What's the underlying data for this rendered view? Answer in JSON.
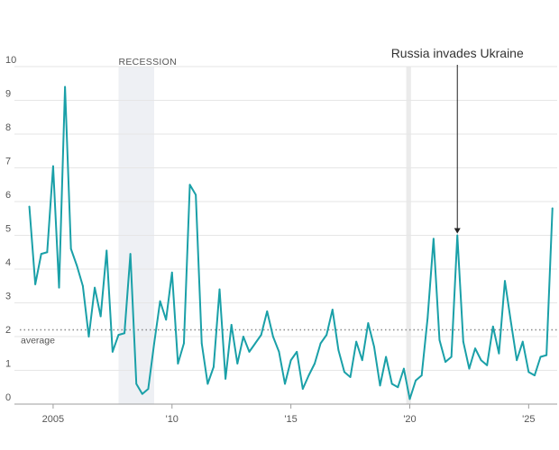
{
  "chart_data": {
    "type": "line",
    "x_ticks": [
      {
        "label": "2005",
        "value": 2005
      },
      {
        "label": "'10",
        "value": 2010
      },
      {
        "label": "'15",
        "value": 2015
      },
      {
        "label": "'20",
        "value": 2020
      },
      {
        "label": "'25",
        "value": 2025
      }
    ],
    "y_ticks": [
      0,
      1,
      2,
      3,
      4,
      5,
      6,
      7,
      8,
      9,
      10
    ],
    "xlim": [
      2003.6,
      2026.2
    ],
    "ylim": [
      0,
      10
    ],
    "grid": true,
    "average": {
      "value": 2.2,
      "label": "average"
    },
    "shaded_periods": [
      {
        "label": "RECESSION",
        "start": 2007.75,
        "end": 2009.25
      },
      {
        "label": "",
        "start": 2019.85,
        "end": 2020.05
      }
    ],
    "annotation": {
      "text": "Russia invades Ukraine",
      "x": 2022.0,
      "y": 5.0
    },
    "series": [
      {
        "color": "#1aa0a8",
        "x": [
          2004.0,
          2004.25,
          2004.5,
          2004.75,
          2005.0,
          2005.25,
          2005.5,
          2005.75,
          2006.0,
          2006.25,
          2006.5,
          2006.75,
          2007.0,
          2007.25,
          2007.5,
          2007.75,
          2008.0,
          2008.25,
          2008.5,
          2008.75,
          2009.0,
          2009.25,
          2009.5,
          2009.75,
          2010.0,
          2010.25,
          2010.5,
          2010.75,
          2011.0,
          2011.25,
          2011.5,
          2011.75,
          2012.0,
          2012.25,
          2012.5,
          2012.75,
          2013.0,
          2013.25,
          2013.5,
          2013.75,
          2014.0,
          2014.25,
          2014.5,
          2014.75,
          2015.0,
          2015.25,
          2015.5,
          2015.75,
          2016.0,
          2016.25,
          2016.5,
          2016.75,
          2017.0,
          2017.25,
          2017.5,
          2017.75,
          2018.0,
          2018.25,
          2018.5,
          2018.75,
          2019.0,
          2019.25,
          2019.5,
          2019.75,
          2020.0,
          2020.25,
          2020.5,
          2020.75,
          2021.0,
          2021.25,
          2021.5,
          2021.75,
          2022.0,
          2022.25,
          2022.5,
          2022.75,
          2023.0,
          2023.25,
          2023.5,
          2023.75,
          2024.0,
          2024.25,
          2024.5,
          2024.75,
          2025.0,
          2025.25,
          2025.5,
          2025.75,
          2026.0
        ],
        "y": [
          5.85,
          3.55,
          4.45,
          4.5,
          7.05,
          3.45,
          9.4,
          4.6,
          4.1,
          3.5,
          2.0,
          3.45,
          2.6,
          4.55,
          1.55,
          2.05,
          2.1,
          4.45,
          0.6,
          0.3,
          0.45,
          1.8,
          3.05,
          2.5,
          3.9,
          1.2,
          1.8,
          6.5,
          6.2,
          1.8,
          0.6,
          1.1,
          3.4,
          0.75,
          2.35,
          1.2,
          2.0,
          1.55,
          1.8,
          2.05,
          2.75,
          2.0,
          1.55,
          0.6,
          1.3,
          1.55,
          0.45,
          0.85,
          1.2,
          1.8,
          2.05,
          2.8,
          1.6,
          0.95,
          0.8,
          1.85,
          1.3,
          2.4,
          1.7,
          0.55,
          1.4,
          0.6,
          0.5,
          1.05,
          0.15,
          0.7,
          0.85,
          2.55,
          4.9,
          1.9,
          1.25,
          1.4,
          5.0,
          1.85,
          1.05,
          1.65,
          1.3,
          1.15,
          2.3,
          1.5,
          3.65,
          2.45,
          1.3,
          1.85,
          0.95,
          0.85,
          1.4,
          1.45,
          5.8
        ]
      }
    ]
  }
}
